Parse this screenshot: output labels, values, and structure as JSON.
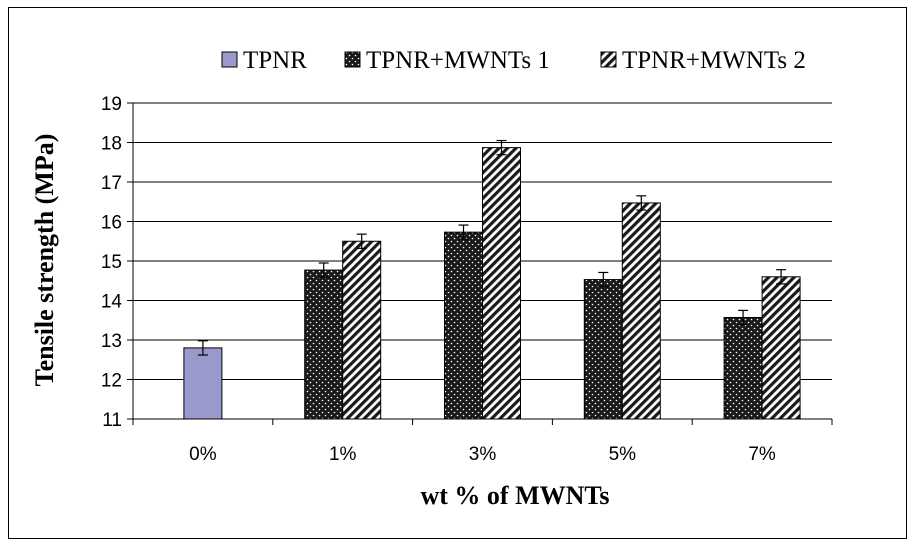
{
  "chart_data": {
    "type": "bar",
    "categories": [
      "0%",
      "1%",
      "3%",
      "5%",
      "7%"
    ],
    "series": [
      {
        "name": "TPNR",
        "values": [
          12.8,
          null,
          null,
          null,
          null
        ],
        "color": "#9999cc",
        "pattern": "solid"
      },
      {
        "name": "TPNR+MWNTs 1",
        "values": [
          null,
          14.77,
          15.73,
          14.53,
          13.57
        ],
        "color": "#1a1a1a",
        "pattern": "dots"
      },
      {
        "name": "TPNR+MWNTs 2",
        "values": [
          null,
          15.5,
          17.87,
          16.47,
          14.6
        ],
        "color": "#ffffff",
        "pattern": "diagonal-stripes"
      }
    ],
    "error": 0.18,
    "xlabel": "wt % of MWNTs",
    "ylabel": "Tensile strength (MPa)",
    "ylim": [
      11,
      19
    ],
    "yticks": [
      "11",
      "12",
      "13",
      "14",
      "15",
      "16",
      "17",
      "18",
      "19"
    ],
    "grid": true,
    "legend": "top"
  }
}
